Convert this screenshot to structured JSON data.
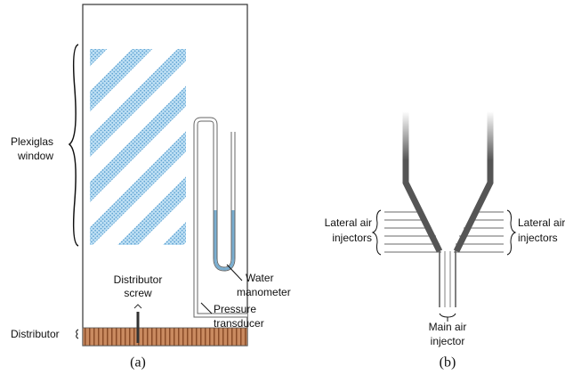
{
  "panel_a": {
    "caption": "(a)",
    "plexiglas_window": [
      "Plexiglas",
      "window"
    ],
    "distributor_screw": [
      "Distributor",
      "screw"
    ],
    "water_manometer": [
      "Water",
      "manometer"
    ],
    "pressure_transducer": [
      "Pressure",
      "transducer"
    ],
    "distributor": "Distributor"
  },
  "panel_b": {
    "caption": "(b)",
    "lateral_air_injectors_left": [
      "Lateral air",
      "injectors"
    ],
    "lateral_air_injectors_right": [
      "Lateral air",
      "injectors"
    ],
    "main_air_injector": [
      "Main air",
      "injector"
    ]
  }
}
